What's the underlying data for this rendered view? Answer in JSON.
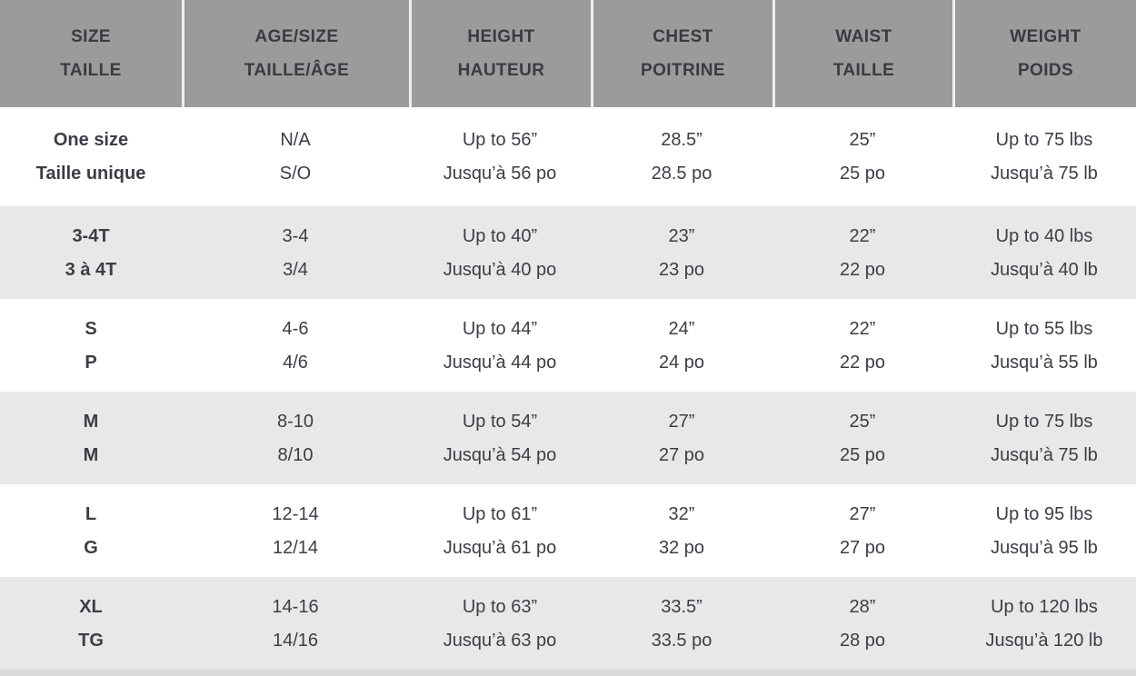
{
  "chart_data": {
    "type": "table",
    "columns": [
      {
        "en": "SIZE",
        "fr": "TAILLE"
      },
      {
        "en": "AGE/SIZE",
        "fr": "TAILLE/ÂGE"
      },
      {
        "en": "HEIGHT",
        "fr": "HAUTEUR"
      },
      {
        "en": "CHEST",
        "fr": "POITRINE"
      },
      {
        "en": "WAIST",
        "fr": "TAILLE"
      },
      {
        "en": "WEIGHT",
        "fr": "POIDS"
      }
    ],
    "rows": [
      {
        "size": {
          "en": "One size",
          "fr": "Taille unique"
        },
        "age": {
          "en": "N/A",
          "fr": "S/O"
        },
        "height": {
          "en": "Up to 56”",
          "fr": "Jusqu’à 56 po"
        },
        "chest": {
          "en": "28.5”",
          "fr": "28.5 po"
        },
        "waist": {
          "en": "25”",
          "fr": "25 po"
        },
        "weight": {
          "en": "Up to 75 lbs",
          "fr": "Jusqu’à 75 lb"
        }
      },
      {
        "size": {
          "en": "3-4T",
          "fr": "3 à 4T"
        },
        "age": {
          "en": "3-4",
          "fr": "3/4"
        },
        "height": {
          "en": "Up to 40”",
          "fr": "Jusqu’à 40 po"
        },
        "chest": {
          "en": "23”",
          "fr": "23 po"
        },
        "waist": {
          "en": "22”",
          "fr": "22 po"
        },
        "weight": {
          "en": "Up to 40 lbs",
          "fr": "Jusqu’à 40 lb"
        }
      },
      {
        "size": {
          "en": "S",
          "fr": "P"
        },
        "age": {
          "en": "4-6",
          "fr": "4/6"
        },
        "height": {
          "en": "Up to 44”",
          "fr": "Jusqu’à 44 po"
        },
        "chest": {
          "en": "24”",
          "fr": "24 po"
        },
        "waist": {
          "en": "22”",
          "fr": "22 po"
        },
        "weight": {
          "en": "Up to 55 lbs",
          "fr": "Jusqu’à 55 lb"
        }
      },
      {
        "size": {
          "en": "M",
          "fr": "M"
        },
        "age": {
          "en": "8-10",
          "fr": "8/10"
        },
        "height": {
          "en": "Up to 54”",
          "fr": "Jusqu’à 54 po"
        },
        "chest": {
          "en": "27”",
          "fr": "27 po"
        },
        "waist": {
          "en": "25”",
          "fr": "25 po"
        },
        "weight": {
          "en": "Up to 75 lbs",
          "fr": "Jusqu’à 75 lb"
        }
      },
      {
        "size": {
          "en": "L",
          "fr": "G"
        },
        "age": {
          "en": "12-14",
          "fr": "12/14"
        },
        "height": {
          "en": "Up to 61”",
          "fr": "Jusqu’à 61 po"
        },
        "chest": {
          "en": "32”",
          "fr": "32 po"
        },
        "waist": {
          "en": "27”",
          "fr": "27 po"
        },
        "weight": {
          "en": "Up to 95 lbs",
          "fr": "Jusqu’à 95 lb"
        }
      },
      {
        "size": {
          "en": "XL",
          "fr": "TG"
        },
        "age": {
          "en": "14-16",
          "fr": "14/16"
        },
        "height": {
          "en": "Up to 63”",
          "fr": "Jusqu’à 63 po"
        },
        "chest": {
          "en": "33.5”",
          "fr": "33.5 po"
        },
        "waist": {
          "en": "28”",
          "fr": "28 po"
        },
        "weight": {
          "en": "Up to 120 lbs",
          "fr": "Jusqu’à 120 lb"
        }
      }
    ],
    "layout": {
      "alternating_rows": true,
      "shaded_row_indices": [
        1,
        3,
        5
      ],
      "header_bg": "#9b9b9b",
      "alt_row_bg": "#e8e8e8",
      "row_bg": "#ffffff",
      "text_color": "#3b3e45",
      "header_separator_color": "#efefef",
      "bottom_strip_color": "#d9d9d9"
    }
  }
}
